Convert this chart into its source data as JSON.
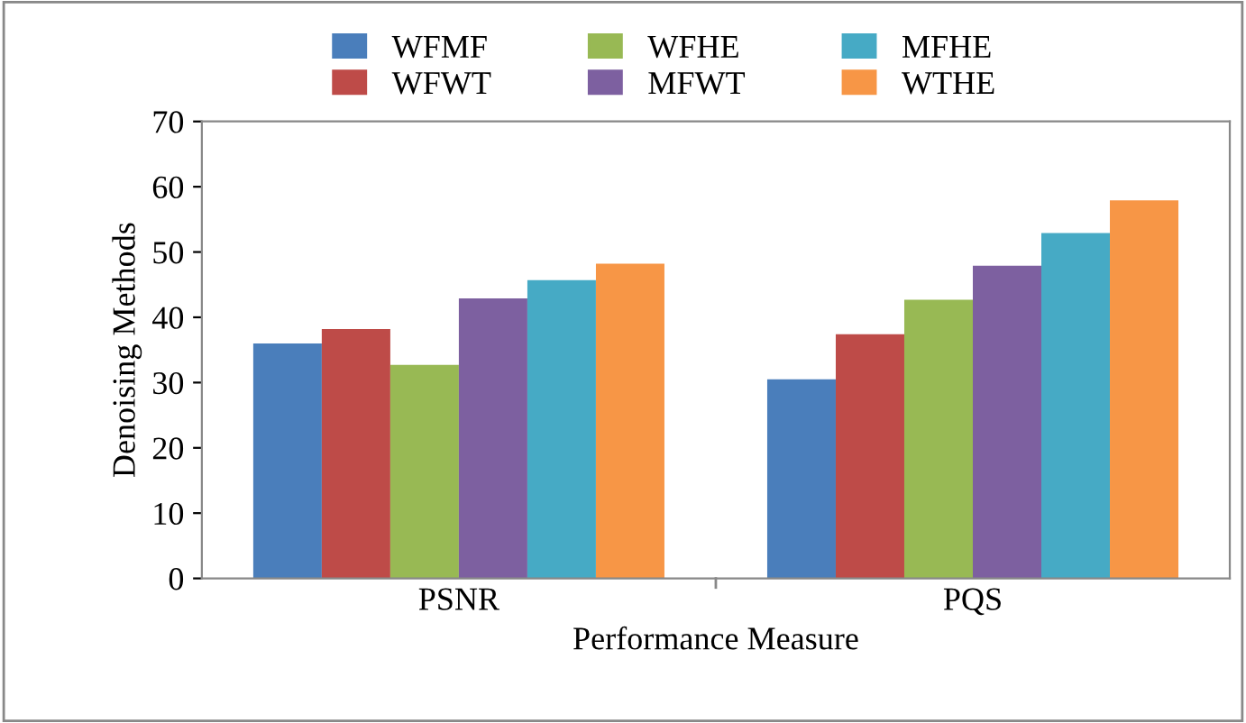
{
  "chart_data": {
    "type": "bar",
    "xlabel": "Performance Measure",
    "ylabel": "Denoising Methods",
    "categories": [
      "PSNR",
      "PQS"
    ],
    "series": [
      {
        "name": "WFMF",
        "color": "#4a7ebb",
        "values": [
          36.0,
          30.5
        ]
      },
      {
        "name": "WFWT",
        "color": "#be4b48",
        "values": [
          38.2,
          37.4
        ]
      },
      {
        "name": "WFHE",
        "color": "#98b954",
        "values": [
          32.7,
          42.7
        ]
      },
      {
        "name": "MFWT",
        "color": "#7d60a0",
        "values": [
          42.9,
          47.9
        ]
      },
      {
        "name": "MFHE",
        "color": "#46aac5",
        "values": [
          45.7,
          52.9
        ]
      },
      {
        "name": "WTHE",
        "color": "#f79646",
        "values": [
          48.2,
          57.9
        ]
      }
    ],
    "ylim": [
      0,
      70
    ],
    "yticks": [
      0,
      10,
      20,
      30,
      40,
      50,
      60,
      70
    ],
    "grid": false,
    "legend": "top"
  }
}
